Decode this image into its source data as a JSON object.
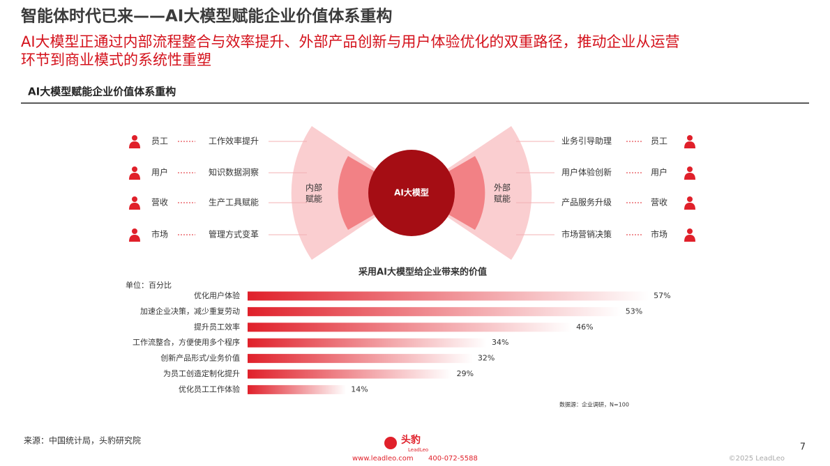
{
  "header": {
    "title": "智能体时代已来——AI大模型赋能企业价值体系重构",
    "subtitle": [
      "AI大模型正通过内部流程整合与效率提升、外部产品创新与用户体验优化的双重路径，推动企业从运营",
      "环节到商业模式的系统性重塑"
    ]
  },
  "section_title": "AI大模型赋能企业价值体系重构",
  "diagram": {
    "center": "AI大模型",
    "left_label": [
      "内部",
      "赋能"
    ],
    "right_label": [
      "外部",
      "赋能"
    ],
    "left_rows": [
      {
        "role": "员工",
        "item": "工作效率提升"
      },
      {
        "role": "用户",
        "item": "知识数据洞察"
      },
      {
        "role": "营收",
        "item": "生产工具赋能"
      },
      {
        "role": "市场",
        "item": "管理方式变革"
      }
    ],
    "right_rows": [
      {
        "item": "业务引导助理",
        "role": "员工"
      },
      {
        "item": "用户体验创新",
        "role": "用户"
      },
      {
        "item": "产品服务升级",
        "role": "营收"
      },
      {
        "item": "市场营销决策",
        "role": "市场"
      }
    ]
  },
  "chart_data": {
    "type": "bar",
    "orientation": "horizontal",
    "title": "采用AI大模型给企业带来的价值",
    "unit_label": "单位：百分比",
    "categories": [
      "优化用户体验",
      "加速企业决策，减少重复劳动",
      "提升员工效率",
      "工作流整合，方便使用多个程序",
      "创新产品形式/业务价值",
      "为员工创造定制化提升",
      "优化员工工作体验"
    ],
    "values": [
      57,
      53,
      46,
      34,
      32,
      29,
      14
    ],
    "value_labels": [
      "57%",
      "53%",
      "46%",
      "34%",
      "32%",
      "29%",
      "14%"
    ],
    "color": "#e0202a",
    "note": "数据源：企业调研，N=100"
  },
  "footer": {
    "source": "来源：中国统计局，头豹研究院",
    "page": "7",
    "brand": "头豹",
    "brand_en": "LeadLeo",
    "website": "www.leadleo.com",
    "phone": "400-072-5588",
    "copyright": "©2025 LeadLeo"
  }
}
